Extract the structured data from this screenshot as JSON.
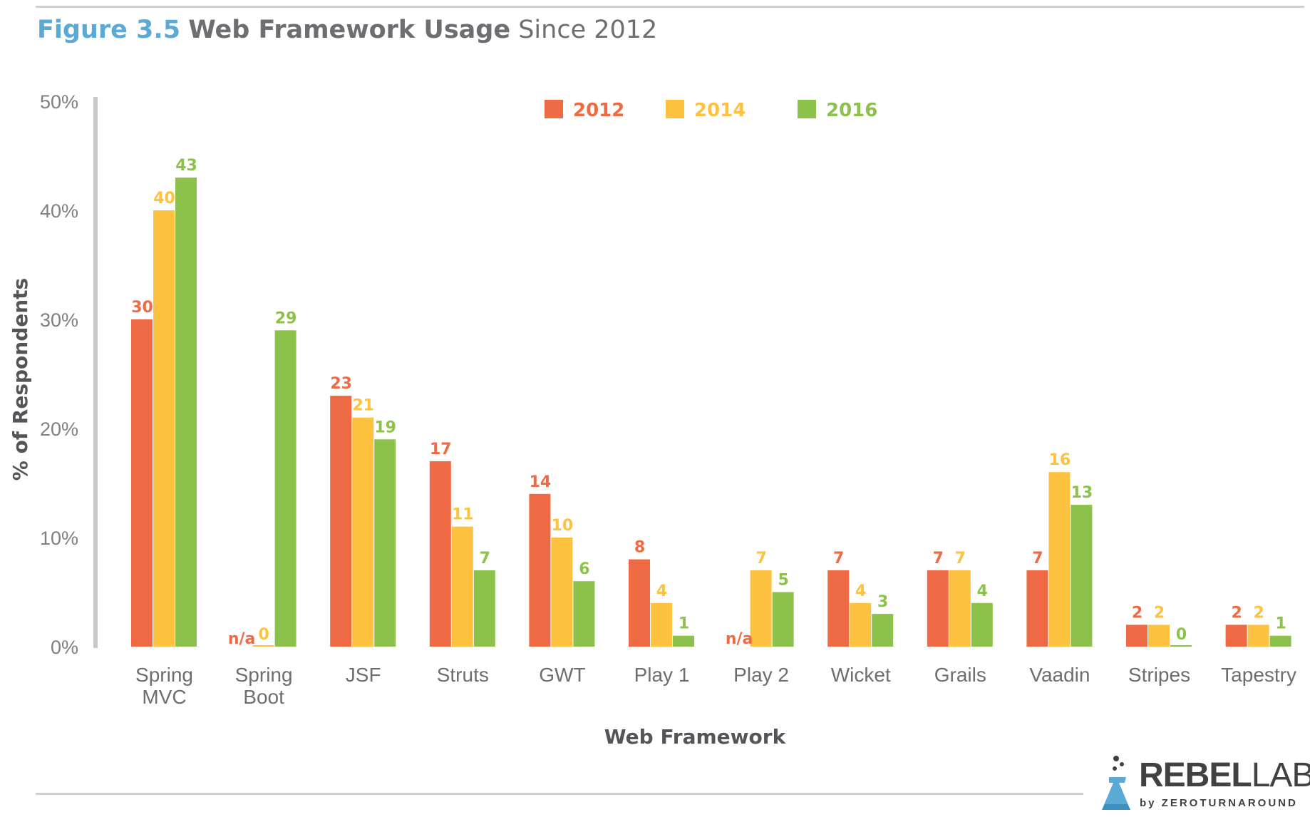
{
  "header": {
    "figure_label": "Figure 3.5",
    "title_bold": "Web Framework Usage",
    "title_light": "Since 2012"
  },
  "logo": {
    "word_bold": "REBEL",
    "word_light": "LABS",
    "byline": "by ZEROTURNAROUND",
    "icon": "flask-icon"
  },
  "colors": {
    "2012": "#ee6a44",
    "2014": "#fdc240",
    "2016": "#8cc24b",
    "title_accent": "#5aaad6",
    "text": "#6d6e71"
  },
  "chart_data": {
    "type": "bar",
    "categories": [
      [
        "Spring",
        "MVC"
      ],
      [
        "Spring",
        "Boot"
      ],
      [
        "JSF"
      ],
      [
        "Struts"
      ],
      [
        "GWT"
      ],
      [
        "Play 1"
      ],
      [
        "Play 2"
      ],
      [
        "Wicket"
      ],
      [
        "Grails"
      ],
      [
        "Vaadin"
      ],
      [
        "Stripes"
      ],
      [
        "Tapestry"
      ]
    ],
    "series": [
      {
        "name": "2012",
        "color": "#ee6a44",
        "values": [
          30,
          null,
          23,
          17,
          14,
          8,
          null,
          7,
          7,
          7,
          2,
          2
        ],
        "labels": [
          "30",
          "n/a",
          "23",
          "17",
          "14",
          "8",
          "n/a",
          "7",
          "7",
          "7",
          "2",
          "2"
        ]
      },
      {
        "name": "2014",
        "color": "#fdc240",
        "values": [
          40,
          0,
          21,
          11,
          10,
          4,
          7,
          4,
          7,
          16,
          2,
          2
        ],
        "labels": [
          "40",
          "0",
          "21",
          "11",
          "10",
          "4",
          "7",
          "4",
          "7",
          "16",
          "2",
          "2"
        ]
      },
      {
        "name": "2016",
        "color": "#8cc24b",
        "values": [
          43,
          29,
          19,
          7,
          6,
          1,
          5,
          3,
          4,
          13,
          0,
          1
        ],
        "labels": [
          "43",
          "29",
          "19",
          "7",
          "6",
          "1",
          "5",
          "3",
          "4",
          "13",
          "0",
          "1"
        ]
      }
    ],
    "xlabel": "Web Framework",
    "ylabel": "% of Respondents",
    "ylim": [
      0,
      50
    ],
    "yticks": [
      "0%",
      "10%",
      "20%",
      "30%",
      "40%",
      "50%"
    ],
    "legend": {
      "position": "top-center",
      "items": [
        "2012",
        "2014",
        "2016"
      ]
    },
    "grid": false
  }
}
